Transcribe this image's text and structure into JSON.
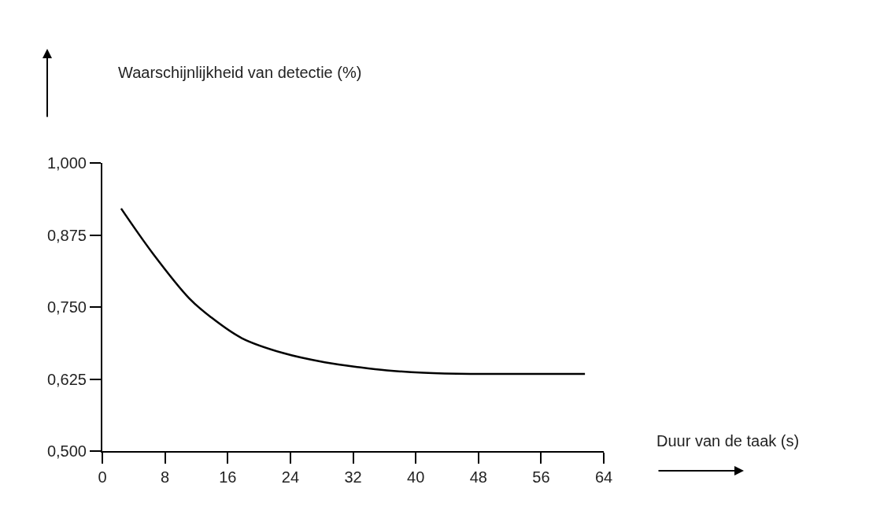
{
  "chart_data": {
    "type": "line",
    "xlabel": "Duur van de taak (s)",
    "ylabel": "Waarschijnlijkheid van detectie (%)",
    "x": [
      2.4,
      6.5,
      11.1,
      13.8,
      17.8,
      23.1,
      28.4,
      33,
      36.3,
      41,
      47,
      54,
      61.6
    ],
    "series": [
      {
        "color": "#000000",
        "values": [
          0.921,
          0.842,
          0.765,
          0.733,
          0.696,
          0.67,
          0.654,
          0.645,
          0.64,
          0.636,
          0.634,
          0.634,
          0.634
        ]
      }
    ],
    "xlim": [
      0,
      64
    ],
    "xticks": [
      0,
      8,
      16,
      24,
      32,
      40,
      48,
      56,
      64
    ],
    "ylim": [
      0.5,
      1.0
    ],
    "yticks": [
      {
        "value": 0.5,
        "label": "0,500"
      },
      {
        "value": 0.625,
        "label": "0,625"
      },
      {
        "value": 0.75,
        "label": "0,750"
      },
      {
        "value": 0.875,
        "label": "0,875"
      },
      {
        "value": 1.0,
        "label": "1,000"
      }
    ],
    "marker": "none",
    "line_style": "solid"
  }
}
